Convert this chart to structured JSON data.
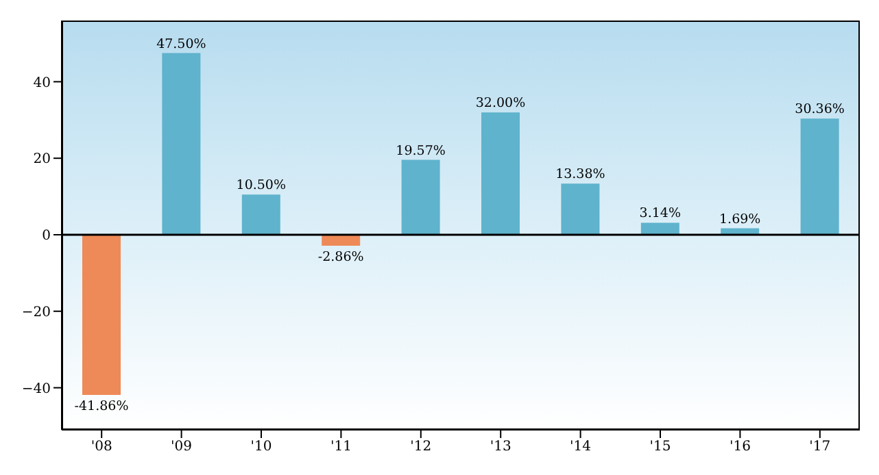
{
  "chart_data": {
    "type": "bar",
    "categories": [
      "'08",
      "'09",
      "'10",
      "'11",
      "'12",
      "'13",
      "'14",
      "'15",
      "'16",
      "'17"
    ],
    "values": [
      -41.86,
      47.5,
      10.5,
      -2.86,
      19.57,
      32.0,
      13.38,
      3.14,
      1.69,
      30.36
    ],
    "value_labels": [
      "-41.86%",
      "47.50%",
      "10.50%",
      "-2.86%",
      "19.57%",
      "32.00%",
      "13.38%",
      "3.14%",
      "1.69%",
      "30.36%"
    ],
    "colors": [
      "#ee8a58",
      "#5fb3cc",
      "#5fb3cc",
      "#ee8a58",
      "#5fb3cc",
      "#5fb3cc",
      "#5fb3cc",
      "#5fb3cc",
      "#5fb3cc",
      "#5fb3cc"
    ],
    "ylim": [
      -51,
      56
    ],
    "yticks": [
      -40,
      -20,
      0,
      20,
      40
    ],
    "grid": false,
    "legend": false,
    "ref_lines": [
      {
        "axis": "y",
        "value": 0,
        "color": "#000000"
      }
    ]
  }
}
